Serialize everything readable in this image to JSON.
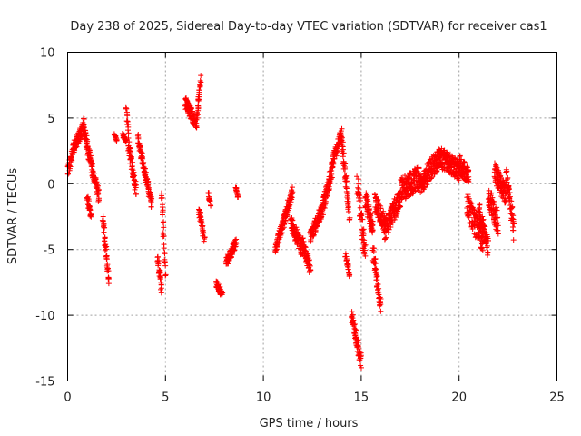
{
  "chart_data": {
    "type": "scatter",
    "title": "Day 238 of 2025, Sidereal Day-to-day VTEC variation (SDTVAR) for receiver cas1",
    "xlabel": "GPS time / hours",
    "ylabel": "SDTVAR / TECUs",
    "xlim": [
      0,
      25
    ],
    "ylim": [
      -15,
      10
    ],
    "xticks": [
      0,
      5,
      10,
      15,
      20,
      25
    ],
    "yticks": [
      10,
      5,
      0,
      -5,
      -10,
      -15
    ],
    "grid": true,
    "marker": "+",
    "series": [
      {
        "name": "SDTVAR",
        "color": "#ff0000",
        "segments": [
          {
            "x": [
              0.0,
              0.3
            ],
            "y": [
              0.8,
              2.8
            ],
            "noise": 1.0
          },
          {
            "x": [
              0.3,
              0.8
            ],
            "y": [
              2.8,
              4.2
            ],
            "noise": 1.0
          },
          {
            "x": [
              0.8,
              1.2
            ],
            "y": [
              4.5,
              1.5
            ],
            "noise": 1.2
          },
          {
            "x": [
              1.2,
              1.6
            ],
            "y": [
              1.5,
              -1.0
            ],
            "noise": 1.0
          },
          {
            "x": [
              1.0,
              1.2
            ],
            "y": [
              -1.0,
              -2.5
            ],
            "noise": 0.6
          },
          {
            "x": [
              1.8,
              2.1
            ],
            "y": [
              -2.5,
              -7.5
            ],
            "noise": 0.8
          },
          {
            "x": [
              2.4,
              2.5
            ],
            "y": [
              3.7,
              3.3
            ],
            "noise": 0.3
          },
          {
            "x": [
              2.8,
              3.0
            ],
            "y": [
              3.7,
              3.3
            ],
            "noise": 0.3
          },
          {
            "x": [
              3.0,
              3.1
            ],
            "y": [
              5.8,
              4.0
            ],
            "noise": 0.4
          },
          {
            "x": [
              3.1,
              3.5
            ],
            "y": [
              3.0,
              -0.5
            ],
            "noise": 1.0
          },
          {
            "x": [
              3.6,
              4.0
            ],
            "y": [
              3.5,
              0.5
            ],
            "noise": 0.8
          },
          {
            "x": [
              4.0,
              4.3
            ],
            "y": [
              0.5,
              -1.5
            ],
            "noise": 0.8
          },
          {
            "x": [
              4.6,
              4.8
            ],
            "y": [
              -5.5,
              -8.0
            ],
            "noise": 0.7
          },
          {
            "x": [
              4.8,
              5.0
            ],
            "y": [
              -0.5,
              -7.0
            ],
            "noise": 1.0
          },
          {
            "x": [
              6.0,
              6.6
            ],
            "y": [
              6.2,
              4.5
            ],
            "noise": 0.9
          },
          {
            "x": [
              6.6,
              6.8
            ],
            "y": [
              5.0,
              8.0
            ],
            "noise": 0.7
          },
          {
            "x": [
              6.7,
              7.0
            ],
            "y": [
              -2.0,
              -4.2
            ],
            "noise": 0.7
          },
          {
            "x": [
              7.2,
              7.3
            ],
            "y": [
              -0.8,
              -1.5
            ],
            "noise": 0.4
          },
          {
            "x": [
              7.6,
              7.9
            ],
            "y": [
              -7.5,
              -8.5
            ],
            "noise": 0.6
          },
          {
            "x": [
              8.1,
              8.6
            ],
            "y": [
              -6.0,
              -4.5
            ],
            "noise": 0.7
          },
          {
            "x": [
              8.6,
              8.7
            ],
            "y": [
              -0.2,
              -1.0
            ],
            "noise": 0.3
          },
          {
            "x": [
              10.6,
              11.0
            ],
            "y": [
              -5.0,
              -3.0
            ],
            "noise": 0.8
          },
          {
            "x": [
              11.0,
              11.5
            ],
            "y": [
              -3.0,
              -0.5
            ],
            "noise": 1.0
          },
          {
            "x": [
              11.4,
              12.0
            ],
            "y": [
              -3.0,
              -5.0
            ],
            "noise": 1.2
          },
          {
            "x": [
              12.0,
              12.4
            ],
            "y": [
              -4.5,
              -6.5
            ],
            "noise": 1.0
          },
          {
            "x": [
              12.4,
              13.0
            ],
            "y": [
              -4.0,
              -2.0
            ],
            "noise": 1.0
          },
          {
            "x": [
              13.0,
              13.5
            ],
            "y": [
              -2.0,
              1.0
            ],
            "noise": 1.2
          },
          {
            "x": [
              13.5,
              14.0
            ],
            "y": [
              1.5,
              3.8
            ],
            "noise": 1.0
          },
          {
            "x": [
              14.0,
              14.4
            ],
            "y": [
              3.5,
              -2.5
            ],
            "noise": 1.4
          },
          {
            "x": [
              14.2,
              14.4
            ],
            "y": [
              -5.5,
              -7.0
            ],
            "noise": 0.6
          },
          {
            "x": [
              14.5,
              15.0
            ],
            "y": [
              -10.0,
              -13.5
            ],
            "noise": 1.0
          },
          {
            "x": [
              14.8,
              15.2
            ],
            "y": [
              0.2,
              -5.5
            ],
            "noise": 1.6
          },
          {
            "x": [
              15.2,
              15.6
            ],
            "y": [
              -1.0,
              -3.5
            ],
            "noise": 1.4
          },
          {
            "x": [
              15.6,
              16.0
            ],
            "y": [
              -5.0,
              -9.5
            ],
            "noise": 1.2
          },
          {
            "x": [
              15.7,
              16.2
            ],
            "y": [
              -1.5,
              -3.0
            ],
            "noise": 1.5
          },
          {
            "x": [
              16.2,
              17.0
            ],
            "y": [
              -3.5,
              -1.0
            ],
            "noise": 1.6
          },
          {
            "x": [
              17.0,
              18.0
            ],
            "y": [
              -0.5,
              0.5
            ],
            "noise": 1.8
          },
          {
            "x": [
              18.0,
              19.0
            ],
            "y": [
              0.0,
              2.0
            ],
            "noise": 1.6
          },
          {
            "x": [
              19.0,
              20.0
            ],
            "y": [
              2.0,
              1.0
            ],
            "noise": 1.6
          },
          {
            "x": [
              20.0,
              20.5
            ],
            "y": [
              1.5,
              0.5
            ],
            "noise": 1.4
          },
          {
            "x": [
              20.4,
              21.2
            ],
            "y": [
              -1.5,
              -4.5
            ],
            "noise": 1.8
          },
          {
            "x": [
              21.0,
              21.5
            ],
            "y": [
              -2.0,
              -5.0
            ],
            "noise": 1.5
          },
          {
            "x": [
              21.5,
              22.0
            ],
            "y": [
              -1.0,
              -3.0
            ],
            "noise": 1.8
          },
          {
            "x": [
              21.8,
              22.4
            ],
            "y": [
              1.0,
              -1.0
            ],
            "noise": 1.5
          },
          {
            "x": [
              22.4,
              22.8
            ],
            "y": [
              1.0,
              -3.5
            ],
            "noise": 1.6
          }
        ]
      }
    ]
  }
}
